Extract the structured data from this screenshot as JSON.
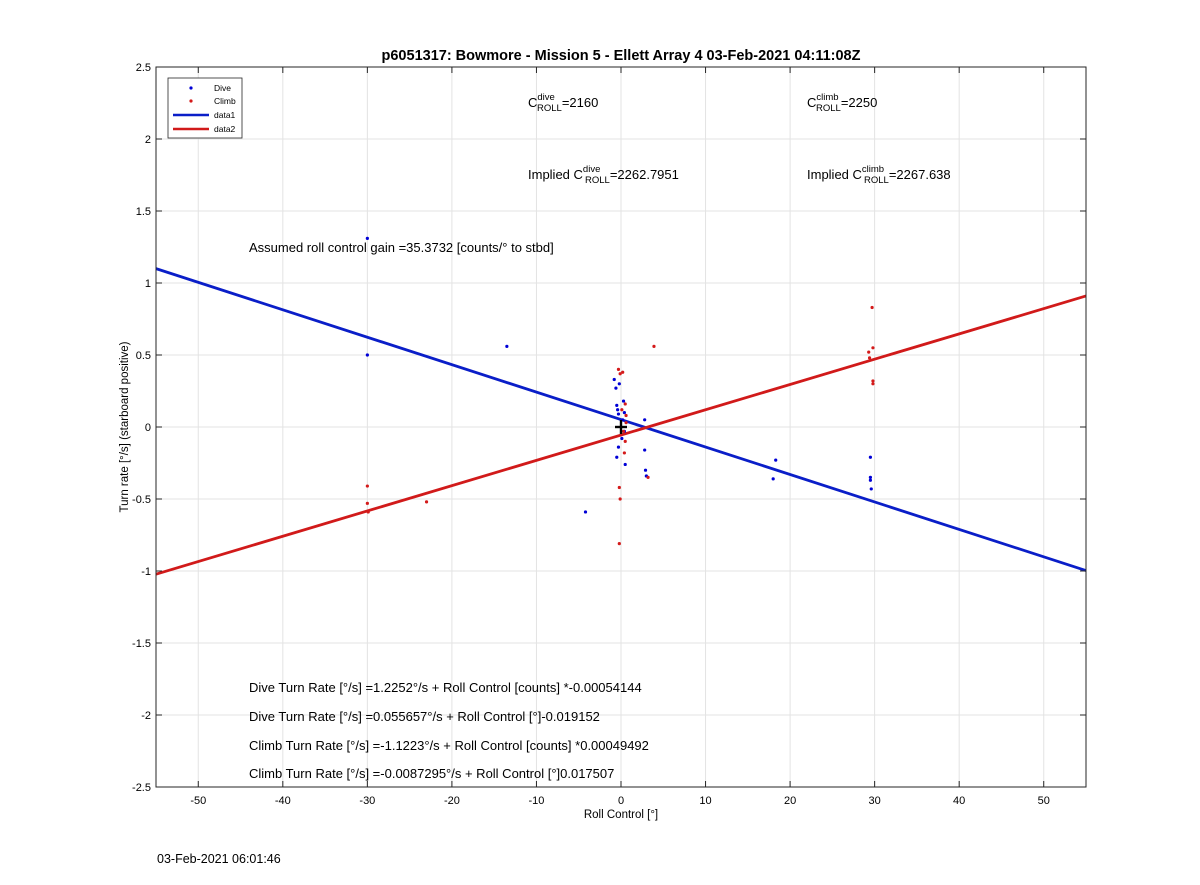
{
  "chart_data": {
    "type": "scatter",
    "title": "p6051317: Bowmore - Mission 5 - Ellett Array 4 03-Feb-2021 04:11:08Z",
    "xlabel": "Roll Control [°]",
    "ylabel": "Turn rate [°/s] (starboard positive)",
    "xlim": [
      -55,
      55
    ],
    "ylim": [
      -2.5,
      2.5
    ],
    "xticks": [
      -50,
      -40,
      -30,
      -20,
      -10,
      0,
      10,
      20,
      30,
      40,
      50
    ],
    "yticks": [
      -2.5,
      -2,
      -1.5,
      -1,
      -0.5,
      0,
      0.5,
      1,
      1.5,
      2,
      2.5
    ],
    "grid": true,
    "legend_position": "top-left",
    "colors": {
      "dive": "#0000d6",
      "climb": "#d41a1a",
      "data1": "#0a1ec8",
      "data2": "#d11a1a",
      "origin_marker": "#000000"
    },
    "legend": [
      {
        "label": "Dive",
        "kind": "marker",
        "color": "#0000d6"
      },
      {
        "label": "Climb",
        "kind": "marker",
        "color": "#d41a1a"
      },
      {
        "label": "data1",
        "kind": "line",
        "color": "#0a1ec8"
      },
      {
        "label": "data2",
        "kind": "line",
        "color": "#d11a1a"
      }
    ],
    "series": [
      {
        "name": "Dive",
        "kind": "scatter",
        "points": [
          [
            -30,
            1.31
          ],
          [
            -30,
            0.5
          ],
          [
            -13.5,
            0.56
          ],
          [
            -4.2,
            -0.59
          ],
          [
            -0.8,
            0.33
          ],
          [
            -0.6,
            0.27
          ],
          [
            -0.5,
            0.15
          ],
          [
            -0.4,
            0.12
          ],
          [
            -0.3,
            0.09
          ],
          [
            -0.2,
            0.3
          ],
          [
            0.2,
            0.05
          ],
          [
            0.3,
            0.18
          ],
          [
            0.4,
            -0.03
          ],
          [
            0.5,
            -0.26
          ],
          [
            -0.5,
            -0.21
          ],
          [
            -0.3,
            -0.14
          ],
          [
            0.1,
            -0.08
          ],
          [
            0.4,
            0.1
          ],
          [
            2.8,
            0.05
          ],
          [
            2.8,
            -0.16
          ],
          [
            2.9,
            -0.3
          ],
          [
            3.0,
            -0.34
          ],
          [
            18,
            -0.36
          ],
          [
            18.3,
            -0.23
          ],
          [
            29.5,
            -0.21
          ],
          [
            29.5,
            -0.35
          ],
          [
            29.5,
            -0.37
          ],
          [
            29.6,
            -0.43
          ]
        ]
      },
      {
        "name": "Climb",
        "kind": "scatter",
        "points": [
          [
            -30,
            -0.41
          ],
          [
            -30,
            -0.53
          ],
          [
            -29.9,
            -0.59
          ],
          [
            -23,
            -0.52
          ],
          [
            -0.3,
            0.4
          ],
          [
            -0.1,
            0.37
          ],
          [
            0.2,
            0.38
          ],
          [
            0.5,
            0.16
          ],
          [
            0.6,
            0.03
          ],
          [
            0.3,
            -0.03
          ],
          [
            0.5,
            -0.1
          ],
          [
            0.4,
            -0.18
          ],
          [
            -0.2,
            -0.42
          ],
          [
            -0.1,
            -0.5
          ],
          [
            -0.2,
            -0.81
          ],
          [
            0.1,
            0.12
          ],
          [
            0.6,
            0.08
          ],
          [
            3.2,
            -0.35
          ],
          [
            3.9,
            0.56
          ],
          [
            29.3,
            0.52
          ],
          [
            29.4,
            0.48
          ],
          [
            29.8,
            0.55
          ],
          [
            29.7,
            0.83
          ],
          [
            29.8,
            0.32
          ],
          [
            29.8,
            0.3
          ]
        ]
      },
      {
        "name": "data1",
        "kind": "line",
        "x": [
          -55,
          55
        ],
        "y": [
          1.1,
          -0.997
        ]
      },
      {
        "name": "data2",
        "kind": "line",
        "x": [
          -55,
          55
        ],
        "y": [
          -1.022,
          0.91
        ]
      }
    ],
    "origin_marker": {
      "x": 0,
      "y": 0,
      "shape": "plus"
    },
    "annotations": {
      "c_dive": {
        "prefix": "C",
        "sup": "dive",
        "sub": "ROLL",
        "value": "=2160"
      },
      "c_climb": {
        "prefix": "C",
        "sup": "climb",
        "sub": "ROLL",
        "value": "=2250"
      },
      "implied_dive": {
        "prefix": "Implied C",
        "sup": "dive",
        "sub": "ROLL",
        "value": "=2262.7951"
      },
      "implied_climb": {
        "prefix": "Implied C",
        "sup": "climb",
        "sub": "ROLL",
        "value": "=2267.638"
      },
      "gain": "Assumed roll control gain =35.3732 [counts/° to stbd]",
      "equations": [
        "Dive Turn Rate [°/s] =1.2252°/s + Roll Control [counts] *-0.00054144",
        "Dive Turn Rate [°/s] =0.055657°/s + Roll Control [°]-0.019152",
        "Climb Turn Rate [°/s] =-1.1223°/s + Roll Control [counts] *0.00049492",
        "Climb Turn Rate [°/s] =-0.0087295°/s + Roll Control [°]0.017507"
      ]
    }
  },
  "footer": {
    "date": "03-Feb-2021 06:01:46"
  }
}
